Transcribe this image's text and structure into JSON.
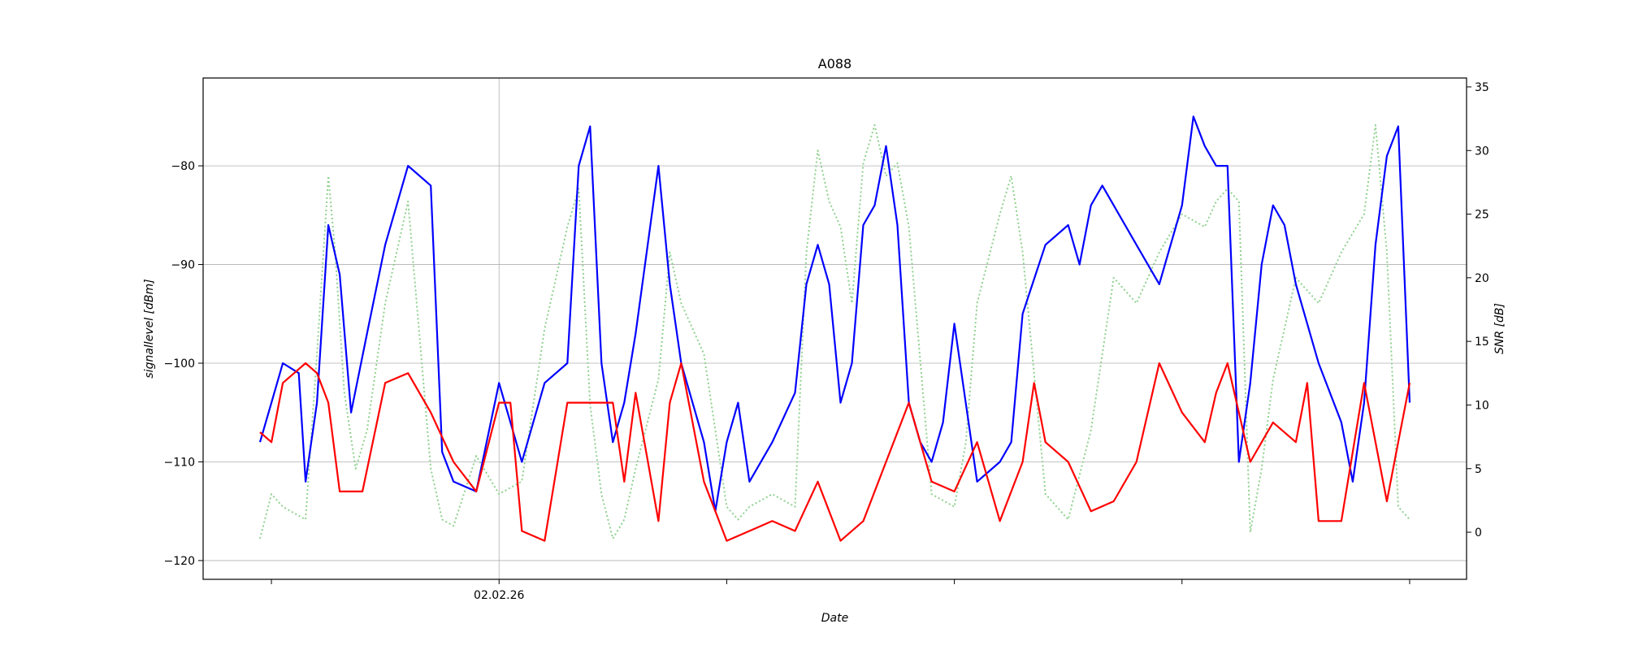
{
  "chart_data": {
    "type": "line",
    "title": "A088",
    "xlabel": "Date",
    "ylabel": "signallevel [dBm]",
    "y2label": "SNR [dB]",
    "grid": true,
    "x_tick_labels": [
      "",
      "02.02.26",
      "",
      "",
      "",
      "",
      ""
    ],
    "x_range": [
      -0.3,
      5.25
    ],
    "ylim": [
      -121.9,
      -71.1
    ],
    "y_ticks": [
      -120,
      -110,
      -100,
      -90,
      -80
    ],
    "y2lim": [
      -3.7,
      35.7
    ],
    "y2_ticks": [
      0,
      5,
      10,
      15,
      20,
      25,
      30,
      35
    ],
    "series": [
      {
        "name": "signal level (blue)",
        "axis": "left",
        "color": "#0000ff",
        "style": "solid",
        "x": [
          -0.05,
          0.0,
          0.05,
          0.12,
          0.15,
          0.2,
          0.25,
          0.3,
          0.35,
          0.42,
          0.5,
          0.6,
          0.7,
          0.75,
          0.8,
          0.9,
          1.0,
          1.1,
          1.2,
          1.3,
          1.35,
          1.4,
          1.45,
          1.5,
          1.55,
          1.6,
          1.7,
          1.75,
          1.8,
          1.9,
          1.95,
          2.0,
          2.05,
          2.1,
          2.2,
          2.3,
          2.35,
          2.4,
          2.45,
          2.5,
          2.55,
          2.6,
          2.65,
          2.7,
          2.75,
          2.8,
          2.85,
          2.9,
          2.95,
          3.0,
          3.05,
          3.1,
          3.2,
          3.25,
          3.3,
          3.4,
          3.5,
          3.55,
          3.6,
          3.65,
          3.7,
          3.8,
          3.9,
          4.0,
          4.05,
          4.1,
          4.15,
          4.2,
          4.25,
          4.3,
          4.35,
          4.4,
          4.45,
          4.5,
          4.6,
          4.7,
          4.75,
          4.8,
          4.85,
          4.9,
          4.95,
          5.0
        ],
        "y": [
          -108,
          -104,
          -100,
          -101,
          -112,
          -104,
          -86,
          -91,
          -105,
          -97,
          -88,
          -80,
          -82,
          -109,
          -112,
          -113,
          -102,
          -110,
          -102,
          -100,
          -80,
          -76,
          -100,
          -108,
          -104,
          -97,
          -80,
          -92,
          -100,
          -108,
          -115,
          -108,
          -104,
          -112,
          -108,
          -103,
          -92,
          -88,
          -92,
          -104,
          -100,
          -86,
          -84,
          -78,
          -86,
          -104,
          -108,
          -110,
          -106,
          -96,
          -104,
          -112,
          -110,
          -108,
          -95,
          -88,
          -86,
          -90,
          -84,
          -82,
          -84,
          -88,
          -92,
          -84,
          -75,
          -78,
          -80,
          -80,
          -110,
          -102,
          -90,
          -84,
          -86,
          -92,
          -100,
          -106,
          -112,
          -104,
          -88,
          -79,
          -76,
          -104
        ]
      },
      {
        "name": "signal level (red)",
        "axis": "left",
        "color": "#ff0000",
        "style": "solid",
        "x": [
          -0.05,
          0.0,
          0.05,
          0.1,
          0.15,
          0.2,
          0.25,
          0.3,
          0.4,
          0.5,
          0.6,
          0.7,
          0.8,
          0.9,
          1.0,
          1.05,
          1.1,
          1.2,
          1.3,
          1.4,
          1.45,
          1.5,
          1.55,
          1.6,
          1.7,
          1.75,
          1.8,
          1.9,
          2.0,
          2.1,
          2.2,
          2.3,
          2.4,
          2.5,
          2.6,
          2.7,
          2.8,
          2.9,
          3.0,
          3.1,
          3.2,
          3.3,
          3.35,
          3.4,
          3.5,
          3.6,
          3.7,
          3.8,
          3.9,
          4.0,
          4.1,
          4.15,
          4.2,
          4.3,
          4.4,
          4.5,
          4.55,
          4.6,
          4.7,
          4.8,
          4.9,
          4.95,
          5.0
        ],
        "y": [
          -107,
          -108,
          -102,
          -101,
          -100,
          -101,
          -104,
          -113,
          -113,
          -102,
          -101,
          -105,
          -110,
          -113,
          -104,
          -104,
          -117,
          -118,
          -104,
          -104,
          -104,
          -104,
          -112,
          -103,
          -116,
          -104,
          -100,
          -112,
          -118,
          -117,
          -116,
          -117,
          -112,
          -118,
          -116,
          -110,
          -104,
          -112,
          -113,
          -108,
          -116,
          -110,
          -102,
          -108,
          -110,
          -115,
          -114,
          -110,
          -100,
          -105,
          -108,
          -103,
          -100,
          -110,
          -106,
          -108,
          -102,
          -116,
          -116,
          -102,
          -114,
          -108,
          -102
        ]
      },
      {
        "name": "SNR",
        "axis": "right",
        "color": "#8fd18f",
        "style": "dotted",
        "x": [
          -0.05,
          0.0,
          0.05,
          0.1,
          0.15,
          0.2,
          0.25,
          0.28,
          0.32,
          0.37,
          0.42,
          0.5,
          0.6,
          0.7,
          0.75,
          0.8,
          0.9,
          1.0,
          1.1,
          1.2,
          1.3,
          1.35,
          1.4,
          1.45,
          1.5,
          1.55,
          1.6,
          1.7,
          1.75,
          1.8,
          1.9,
          2.0,
          2.05,
          2.1,
          2.2,
          2.3,
          2.35,
          2.4,
          2.45,
          2.5,
          2.55,
          2.6,
          2.65,
          2.7,
          2.75,
          2.8,
          2.9,
          3.0,
          3.05,
          3.1,
          3.2,
          3.25,
          3.3,
          3.4,
          3.5,
          3.6,
          3.7,
          3.8,
          3.9,
          4.0,
          4.1,
          4.15,
          4.2,
          4.25,
          4.3,
          4.35,
          4.4,
          4.45,
          4.5,
          4.6,
          4.7,
          4.8,
          4.85,
          4.9,
          4.95,
          5.0
        ],
        "y": [
          -0.5,
          3.0,
          2.0,
          1.5,
          1.0,
          14.0,
          28.0,
          22.0,
          11.0,
          5.0,
          8.0,
          18.0,
          26.0,
          5.0,
          1.0,
          0.5,
          6.0,
          3.0,
          4.0,
          16.0,
          24.0,
          27.0,
          10.0,
          3.0,
          -0.5,
          1.0,
          5.0,
          12.0,
          22.0,
          18.0,
          14.0,
          2.0,
          1.0,
          2.0,
          3.0,
          2.0,
          22.0,
          30.0,
          26.0,
          24.0,
          18.0,
          29.0,
          32.0,
          28.0,
          29.0,
          24.0,
          3.0,
          2.0,
          7.0,
          18.0,
          25.0,
          28.0,
          22.0,
          3.0,
          1.0,
          8.0,
          20.0,
          18.0,
          22.0,
          25.0,
          24.0,
          26.0,
          27.0,
          26.0,
          0.0,
          5.0,
          12.0,
          16.0,
          20.0,
          18.0,
          22.0,
          25.0,
          32.0,
          22.0,
          2.0,
          1.0
        ]
      }
    ]
  }
}
